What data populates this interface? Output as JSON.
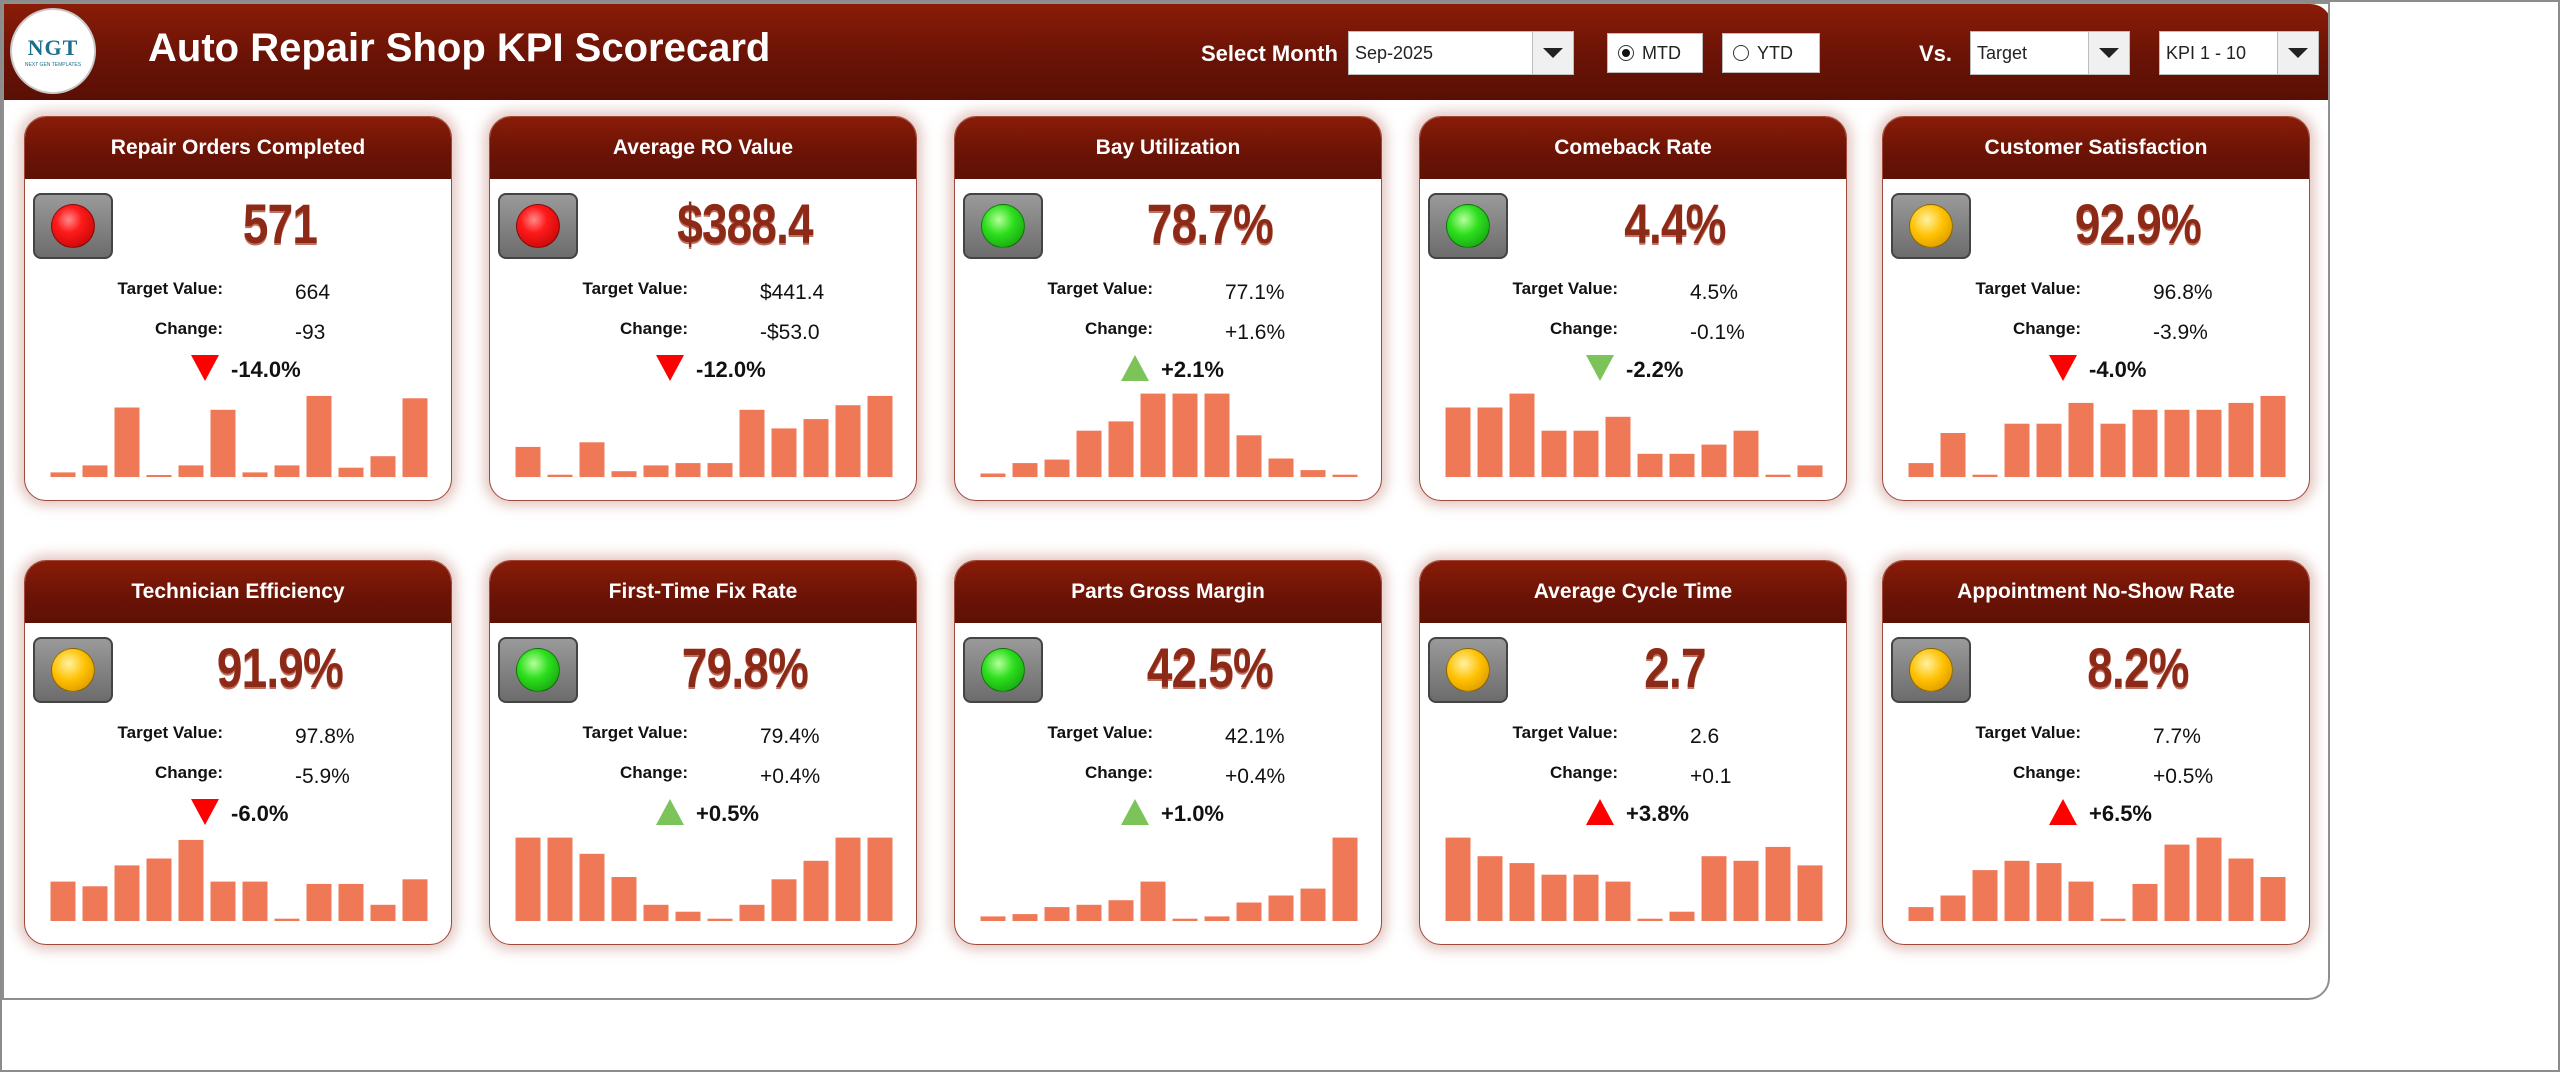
{
  "header": {
    "logo_text": "NGT",
    "logo_subtext": "NEXT GEN TEMPLATES",
    "title": "Auto Repair Shop KPI Scorecard",
    "select_month_label": "Select Month",
    "month_value": "Sep-2025",
    "mtd_label": "MTD",
    "ytd_label": "YTD",
    "mtd_selected": true,
    "vs_label": "Vs.",
    "vs_value": "Target",
    "kpi_range_value": "KPI 1 - 10"
  },
  "labels": {
    "target": "Target Value:",
    "change": "Change:"
  },
  "colors": {
    "header_red": "#6a1306",
    "value_red": "#8d2a17",
    "bar": "#ef7857",
    "arrow_red": "#ff0000",
    "arrow_green": "#7cc45a"
  },
  "cards": [
    {
      "title": "Repair Orders Completed",
      "value": "571",
      "target": "664",
      "change": "-93",
      "pct": "-14.0%",
      "status": "red",
      "direction": "down",
      "arrow_color": "red",
      "trend": [
        4,
        10,
        60,
        1,
        10,
        58,
        4,
        10,
        70,
        8,
        18,
        68
      ]
    },
    {
      "title": "Average RO Value",
      "value": "$388.4",
      "target": "$441.4",
      "change": "-$53.0",
      "pct": "-12.0%",
      "status": "red",
      "direction": "down",
      "arrow_color": "red",
      "trend": [
        26,
        2,
        30,
        5,
        10,
        12,
        12,
        58,
        42,
        50,
        62,
        70
      ]
    },
    {
      "title": "Bay Utilization",
      "value": "78.7%",
      "target": "77.1%",
      "change": "+1.6%",
      "pct": "+2.1%",
      "status": "green",
      "direction": "up",
      "arrow_color": "green",
      "trend": [
        3,
        12,
        15,
        40,
        48,
        72,
        72,
        72,
        36,
        16,
        6,
        2
      ]
    },
    {
      "title": "Comeback Rate",
      "value": "4.4%",
      "target": "4.5%",
      "change": "-0.1%",
      "pct": "-2.2%",
      "status": "green",
      "direction": "down",
      "arrow_color": "green",
      "trend": [
        60,
        60,
        72,
        40,
        40,
        52,
        20,
        20,
        28,
        40,
        2,
        10
      ]
    },
    {
      "title": "Customer Satisfaction",
      "value": "92.9%",
      "target": "96.8%",
      "change": "-3.9%",
      "pct": "-4.0%",
      "status": "yellow",
      "direction": "down",
      "arrow_color": "red",
      "trend": [
        12,
        38,
        2,
        46,
        46,
        64,
        46,
        58,
        58,
        58,
        64,
        70
      ]
    },
    {
      "title": "Technician Efficiency",
      "value": "91.9%",
      "target": "97.8%",
      "change": "-5.9%",
      "pct": "-6.0%",
      "status": "yellow",
      "direction": "down",
      "arrow_color": "red",
      "trend": [
        34,
        30,
        48,
        54,
        70,
        34,
        34,
        2,
        32,
        32,
        14,
        36
      ]
    },
    {
      "title": "First-Time Fix Rate",
      "value": "79.8%",
      "target": "79.4%",
      "change": "+0.4%",
      "pct": "+0.5%",
      "status": "green",
      "direction": "up",
      "arrow_color": "green",
      "trend": [
        72,
        72,
        58,
        38,
        14,
        8,
        2,
        14,
        36,
        52,
        72,
        72
      ]
    },
    {
      "title": "Parts Gross Margin",
      "value": "42.5%",
      "target": "42.1%",
      "change": "+0.4%",
      "pct": "+1.0%",
      "status": "green",
      "direction": "up",
      "arrow_color": "green",
      "trend": [
        4,
        6,
        12,
        14,
        18,
        34,
        2,
        4,
        16,
        22,
        28,
        72
      ]
    },
    {
      "title": "Average Cycle Time",
      "value": "2.7",
      "target": "2.6",
      "change": "+0.1",
      "pct": "+3.8%",
      "status": "yellow",
      "direction": "up",
      "arrow_color": "red",
      "trend": [
        72,
        56,
        50,
        40,
        40,
        34,
        2,
        8,
        56,
        52,
        64,
        48
      ]
    },
    {
      "title": "Appointment No-Show Rate",
      "value": "8.2%",
      "target": "7.7%",
      "change": "+0.5%",
      "pct": "+6.5%",
      "status": "yellow",
      "direction": "up",
      "arrow_color": "red",
      "trend": [
        12,
        22,
        44,
        52,
        50,
        34,
        2,
        32,
        66,
        72,
        54,
        38
      ]
    }
  ]
}
